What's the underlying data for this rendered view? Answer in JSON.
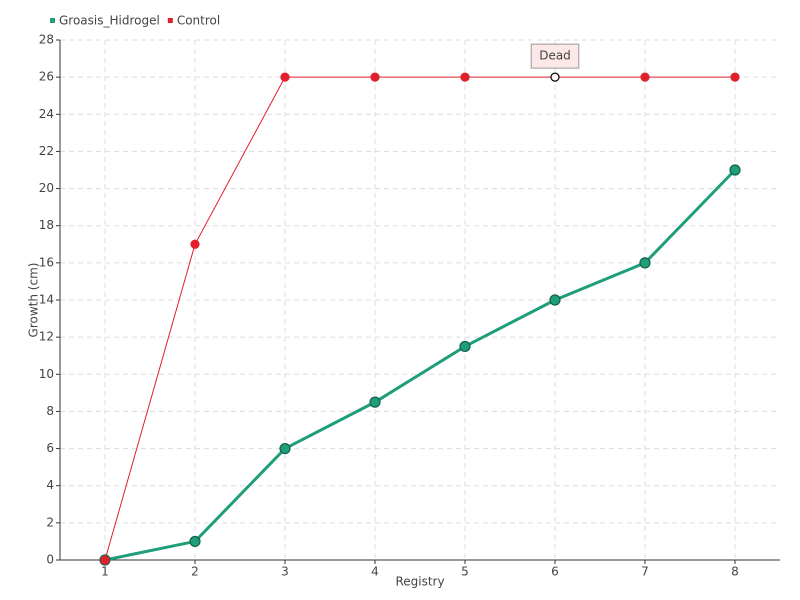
{
  "chart_data": {
    "type": "line",
    "categories": [
      "1",
      "2",
      "3",
      "4",
      "5",
      "6",
      "7",
      "8"
    ],
    "series": [
      {
        "name": "Groasis_Hidrogel",
        "color": "#1e9e7a",
        "values": [
          0,
          1,
          6,
          8.5,
          11.5,
          14,
          16,
          21
        ]
      },
      {
        "name": "Control",
        "color": "#e0202c",
        "values": [
          0,
          17,
          26,
          26,
          26,
          26,
          26,
          26
        ]
      }
    ],
    "x_label": "Registry",
    "y_label": "Growth (cm)",
    "ylim": [
      0,
      28
    ],
    "yticks": [
      0,
      2,
      4,
      6,
      8,
      10,
      12,
      14,
      16,
      18,
      20,
      22,
      24,
      26,
      28
    ],
    "grid": true,
    "legend": "top-left",
    "annotations": [
      {
        "text": "Dead",
        "x": "6",
        "y": 26
      }
    ]
  }
}
